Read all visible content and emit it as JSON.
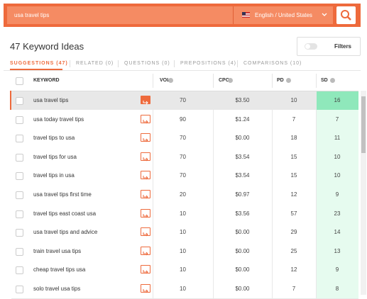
{
  "search": {
    "query": "usa travel tips",
    "locale": "English / United States"
  },
  "header": {
    "title": "47 Keyword Ideas",
    "filters": "Filters"
  },
  "tabs": [
    "SUGGESTIONS (47)",
    "RELATED (0)",
    "QUESTIONS (0)",
    "PREPOSITIONS (4)",
    "COMPARISONS (10)"
  ],
  "table": {
    "columns": [
      "KEYWORD",
      "VOL",
      "CPC",
      "PD",
      "SD"
    ],
    "rows": [
      [
        "usa travel tips",
        70,
        "$3.50",
        10,
        16
      ],
      [
        "usa today travel tips",
        90,
        "$1.24",
        7,
        7
      ],
      [
        "travel tips to usa",
        70,
        "$0.00",
        18,
        11
      ],
      [
        "travel tips for usa",
        70,
        "$3.54",
        15,
        10
      ],
      [
        "travel tips in usa",
        70,
        "$3.54",
        15,
        10
      ],
      [
        "usa travel tips first time",
        20,
        "$0.97",
        12,
        9
      ],
      [
        "travel tips east coast usa",
        10,
        "$3.56",
        57,
        23
      ],
      [
        "usa travel tips and advice",
        10,
        "$0.00",
        29,
        14
      ],
      [
        "train travel usa tips",
        10,
        "$0.00",
        25,
        13
      ],
      [
        "cheap travel tips usa",
        10,
        "$0.00",
        12,
        9
      ],
      [
        "solo travel usa tips",
        10,
        "$0.00",
        7,
        8
      ]
    ]
  }
}
